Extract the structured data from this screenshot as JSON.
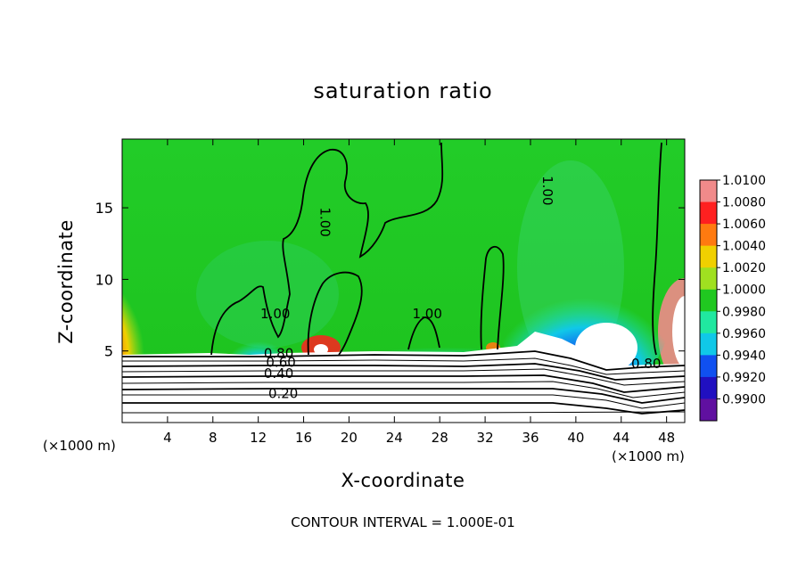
{
  "chart_data": {
    "type": "heatmap",
    "title": "saturation ratio",
    "xlabel": "X-coordinate",
    "ylabel": "Z-coordinate",
    "x_unit": "(×1000 m)",
    "xlim": [
      0,
      49.6
    ],
    "ylim": [
      0,
      19.8
    ],
    "x_ticks": [
      4,
      8,
      12,
      16,
      20,
      24,
      28,
      32,
      36,
      40,
      44,
      48
    ],
    "y_ticks": [
      5,
      10,
      15
    ],
    "colorbar": {
      "levels": [
        "1.0100",
        "1.0080",
        "1.0060",
        "1.0040",
        "1.0020",
        "1.0000",
        "0.9980",
        "0.9960",
        "0.9940",
        "0.9920",
        "0.9900"
      ],
      "colors": [
        "#f08a8a",
        "#ff2020",
        "#ff7a10",
        "#f0d000",
        "#a0e020",
        "#20c820",
        "#20e8a0",
        "#10c8e8",
        "#1050f0",
        "#2010c0",
        "#6010a0"
      ]
    },
    "contour_labels": [
      {
        "text": "1.00",
        "x": 13.5,
        "y": 7.3
      },
      {
        "text": "1.00",
        "x": 17.5,
        "y": 14.0
      },
      {
        "text": "1.00",
        "x": 26.9,
        "y": 7.3
      },
      {
        "text": "1.00",
        "x": 37.1,
        "y": 16.2
      },
      {
        "text": "0.80",
        "x": 13.8,
        "y": 4.5
      },
      {
        "text": "0.60",
        "x": 14.0,
        "y": 3.9
      },
      {
        "text": "0.40",
        "x": 13.8,
        "y": 3.1
      },
      {
        "text": "0.20",
        "x": 14.2,
        "y": 1.7
      },
      {
        "text": "0.80",
        "x": 46.2,
        "y": 3.8
      }
    ],
    "footer": "CONTOUR INTERVAL = 1.000E-01"
  }
}
